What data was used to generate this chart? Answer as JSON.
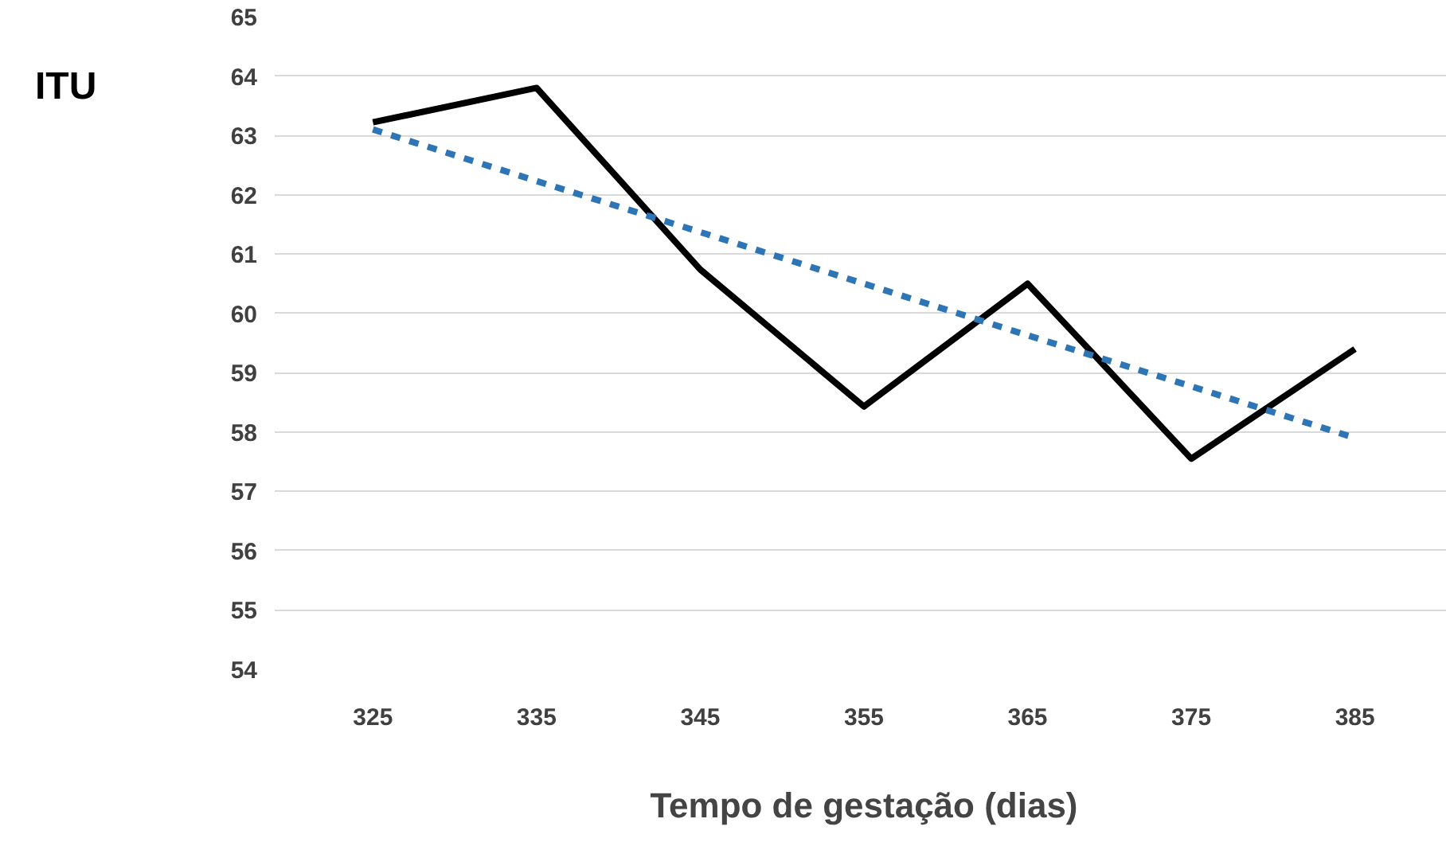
{
  "chart_data": {
    "type": "line",
    "xlabel": "Tempo de gestação (dias)",
    "ylabel": "ITU",
    "categories": [
      "325",
      "335",
      "345",
      "355",
      "365",
      "375",
      "385"
    ],
    "series": [
      {
        "color": "#000000",
        "values": [
          63.22,
          63.8,
          60.74,
          58.43,
          60.5,
          57.55,
          59.4
        ],
        "line_style": "solid"
      },
      {
        "color": "#2e75b6",
        "values": [
          63.1,
          62.23,
          61.37,
          60.5,
          59.63,
          58.77,
          57.9
        ],
        "line_style": "dashed"
      }
    ],
    "ylim": [
      54,
      65
    ],
    "yticks": [
      54,
      55,
      56,
      57,
      58,
      59,
      60,
      61,
      62,
      63,
      64,
      65
    ],
    "grid": "y",
    "marker": "none"
  }
}
